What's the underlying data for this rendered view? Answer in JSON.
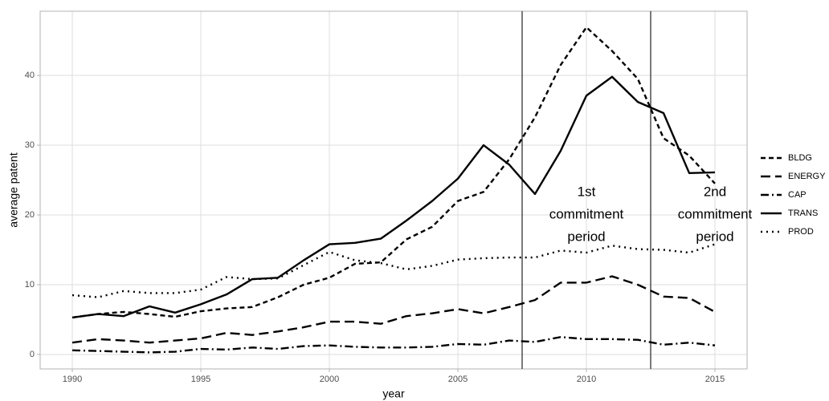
{
  "chart_data": {
    "type": "line",
    "x_label": "year",
    "y_label": "average patent",
    "x": [
      1990,
      1991,
      1992,
      1993,
      1994,
      1995,
      1996,
      1997,
      1998,
      1999,
      2000,
      2001,
      2002,
      2003,
      2004,
      2005,
      2006,
      2007,
      2008,
      2009,
      2010,
      2011,
      2012,
      2013,
      2014,
      2015
    ],
    "series": [
      {
        "name": "BLDG",
        "color": "#000000",
        "dash": "6 4",
        "values": [
          5.3,
          5.8,
          6.1,
          5.8,
          5.4,
          6.2,
          6.6,
          6.8,
          8.2,
          10.0,
          11.0,
          13.0,
          13.2,
          16.5,
          18.3,
          22.0,
          23.3,
          28.0,
          34.0,
          41.5,
          46.9,
          43.5,
          39.5,
          31.0,
          28.5,
          24.5
        ]
      },
      {
        "name": "ENERGY",
        "color": "#000000",
        "dash": "12 6",
        "values": [
          1.7,
          2.2,
          2.0,
          1.7,
          2.0,
          2.3,
          3.1,
          2.8,
          3.3,
          3.9,
          4.7,
          4.7,
          4.4,
          5.5,
          5.9,
          6.5,
          5.9,
          6.8,
          7.8,
          10.3,
          10.3,
          11.2,
          10.0,
          8.3,
          8.1,
          6.1
        ]
      },
      {
        "name": "CAP",
        "color": "#000000",
        "dash": "10 4 2 4",
        "values": [
          0.6,
          0.5,
          0.4,
          0.3,
          0.4,
          0.8,
          0.7,
          1.0,
          0.8,
          1.2,
          1.3,
          1.1,
          1.0,
          1.0,
          1.1,
          1.5,
          1.4,
          2.0,
          1.8,
          2.5,
          2.2,
          2.2,
          2.1,
          1.4,
          1.7,
          1.3
        ]
      },
      {
        "name": "TRANS",
        "color": "#000000",
        "dash": "none",
        "values": [
          5.3,
          5.8,
          5.5,
          6.9,
          6.0,
          7.2,
          8.6,
          10.8,
          11.0,
          13.5,
          15.8,
          16.0,
          16.6,
          19.2,
          22.0,
          25.2,
          30.0,
          27.2,
          23.0,
          29.2,
          37.1,
          39.8,
          36.2,
          34.6,
          26.0,
          26.1
        ]
      },
      {
        "name": "PROD",
        "color": "#000000",
        "dash": "2 5",
        "values": [
          8.5,
          8.2,
          9.1,
          8.8,
          8.8,
          9.3,
          11.1,
          10.8,
          10.9,
          12.8,
          14.7,
          13.5,
          13.1,
          12.2,
          12.7,
          13.6,
          13.8,
          13.9,
          13.9,
          14.9,
          14.6,
          15.6,
          15.1,
          15.0,
          14.6,
          15.8
        ]
      }
    ],
    "vlines": [
      2007.5,
      2012.5
    ],
    "annotations": [
      {
        "x": 2010,
        "y": 20,
        "lines": [
          "1st",
          "commitment",
          "period"
        ]
      },
      {
        "x": 2015,
        "y": 20,
        "lines": [
          "2nd",
          "commitment",
          "period"
        ]
      }
    ],
    "xlim": [
      1988.75,
      2016.25
    ],
    "ylim": [
      -2.07,
      49.2
    ],
    "xticks": [
      1990,
      1995,
      2000,
      2005,
      2010,
      2015
    ],
    "yticks": [
      0,
      10,
      20,
      30,
      40
    ],
    "grid": true,
    "legend": "right"
  }
}
